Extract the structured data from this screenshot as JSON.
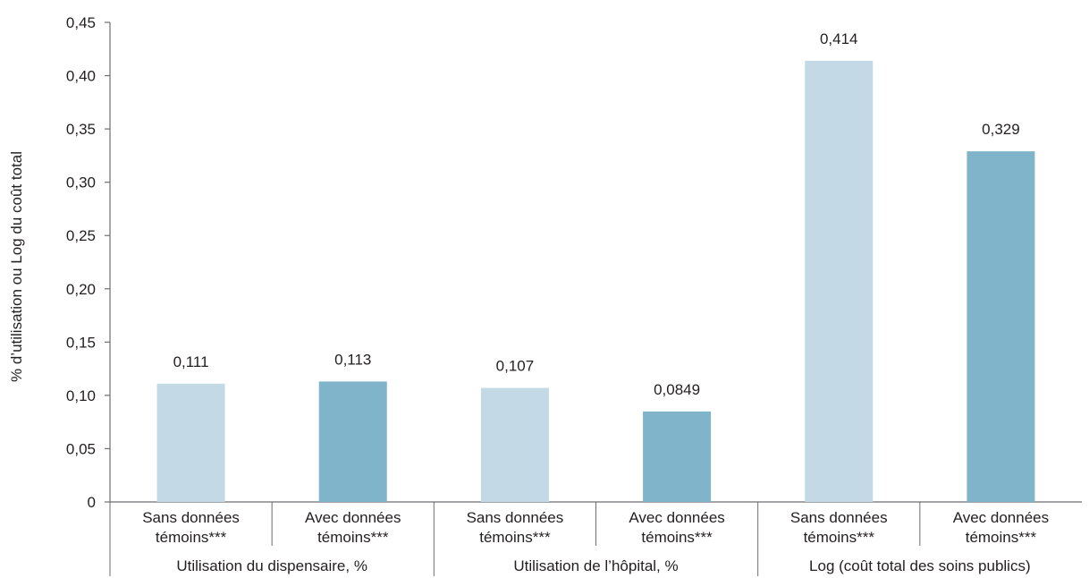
{
  "chart_data": {
    "type": "bar",
    "ylabel": "% d’utilisation ou Log du coût total",
    "ylim": [
      0,
      0.45
    ],
    "yticks": [
      "0",
      "0,05",
      "0,10",
      "0,15",
      "0,20",
      "0,25",
      "0,30",
      "0,35",
      "0,40",
      "0,45"
    ],
    "grid": false,
    "groups": [
      {
        "label": "Utilisation du dispensaire, %",
        "bars": [
          {
            "category": [
              "Sans données",
              "témoins***"
            ],
            "value": 0.111,
            "label": "0,111",
            "color": "#c3dae6"
          },
          {
            "category": [
              "Avec données",
              "témoins***"
            ],
            "value": 0.113,
            "label": "0,113",
            "color": "#7fb4ca"
          }
        ]
      },
      {
        "label": "Utilisation de l’hôpital, %",
        "bars": [
          {
            "category": [
              "Sans données",
              "témoins***"
            ],
            "value": 0.107,
            "label": "0,107",
            "color": "#c3dae6"
          },
          {
            "category": [
              "Avec données",
              "témoins***"
            ],
            "value": 0.0849,
            "label": "0,0849",
            "color": "#7fb4ca"
          }
        ]
      },
      {
        "label": "Log (coût total des soins publics)",
        "bars": [
          {
            "category": [
              "Sans données",
              "témoins***"
            ],
            "value": 0.414,
            "label": "0,414",
            "color": "#c3dae6"
          },
          {
            "category": [
              "Avec données",
              "témoins***"
            ],
            "value": 0.329,
            "label": "0,329",
            "color": "#7fb4ca"
          }
        ]
      }
    ],
    "axis_color": "#6d6e71"
  }
}
